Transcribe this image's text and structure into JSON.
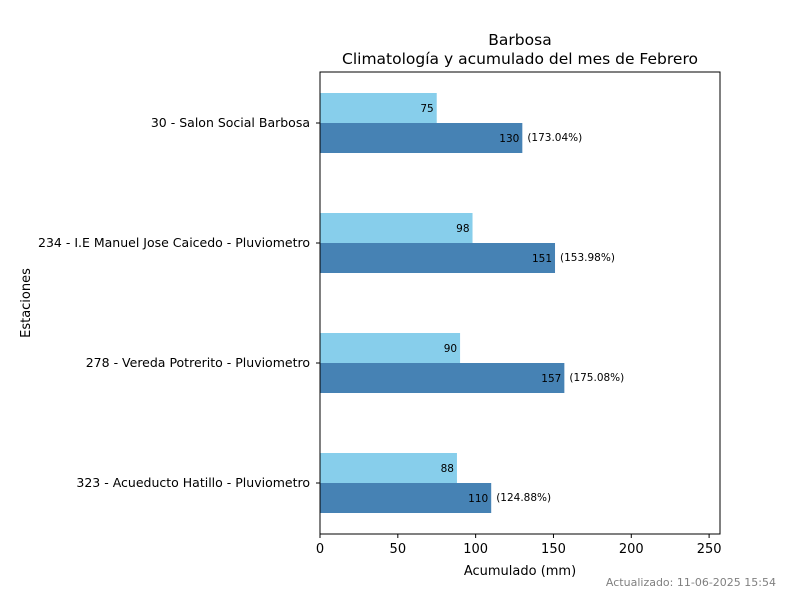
{
  "chart_data": {
    "type": "bar",
    "orientation": "horizontal",
    "title": [
      "Barbosa",
      "Climatología y acumulado del mes de Febrero"
    ],
    "xlabel": "Acumulado (mm)",
    "ylabel": "Estaciones",
    "xlim": [
      0,
      257
    ],
    "xticks": [
      0,
      50,
      100,
      150,
      200,
      250
    ],
    "grid": false,
    "categories": [
      "30 - Salon Social Barbosa",
      "234 - I.E Manuel Jose Caicedo - Pluviometro",
      "278 - Vereda Potrerito - Pluviometro",
      "323 - Acueducto Hatillo - Pluviometro"
    ],
    "series": [
      {
        "color": "#87ceeb",
        "values": [
          75,
          98,
          90,
          88
        ],
        "labels": [
          "75",
          "98",
          "90",
          "88"
        ]
      },
      {
        "color": "#4682b4",
        "values": [
          130,
          151,
          157,
          110
        ],
        "labels": [
          "130",
          "151",
          "157",
          "110"
        ],
        "annotations": [
          "(173.04%)",
          "(153.98%)",
          "(175.08%)",
          "(124.88%)"
        ]
      }
    ]
  },
  "footer": "Actualizado: 11-06-2025 15:54"
}
